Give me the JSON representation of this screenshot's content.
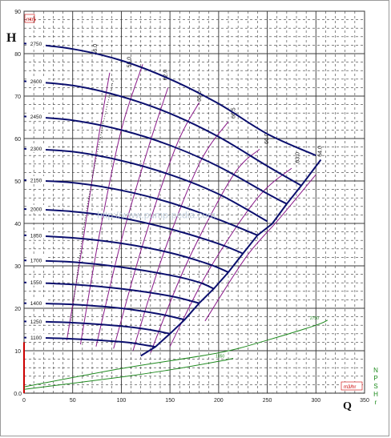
{
  "chart_data": {
    "type": "line",
    "ylabel": "H",
    "y_unit": "mtrs",
    "xlabel": "Q",
    "x_unit": "m3/hr",
    "right_label_chars": [
      "N",
      "P",
      "S",
      "H",
      "r"
    ],
    "x_axis": {
      "min": 0,
      "max": 350,
      "ticks": [
        0,
        50,
        100,
        150,
        200,
        250,
        300,
        350
      ]
    },
    "y_axis": {
      "min": 0,
      "max": 90,
      "ticks": [
        10,
        20,
        30,
        40,
        50,
        60,
        70,
        80,
        90
      ]
    },
    "y_zero_label": "0.0",
    "watermark": "http://www.pump-pedia.com",
    "colors": {
      "head": "#0b0f6e",
      "efficiency": "#8a1a8a",
      "npsh": "#1f8a1f",
      "grid": "#3a3a3a",
      "axis_red": "#cc0000"
    },
    "head_curves": [
      {
        "name": "2750",
        "points": [
          [
            0,
            82.4
          ],
          [
            50,
            81.1
          ],
          [
            100,
            78.4
          ],
          [
            150,
            74.0
          ],
          [
            200,
            68.2
          ],
          [
            250,
            61.1
          ],
          [
            300,
            56.0
          ]
        ]
      },
      {
        "name": "2600",
        "points": [
          [
            0,
            73.5
          ],
          [
            50,
            72.5
          ],
          [
            100,
            69.9
          ],
          [
            150,
            65.9
          ],
          [
            200,
            60.4
          ],
          [
            250,
            53.5
          ],
          [
            285,
            48.9
          ]
        ]
      },
      {
        "name": "2450",
        "points": [
          [
            0,
            65.2
          ],
          [
            50,
            64.3
          ],
          [
            100,
            62.0
          ],
          [
            150,
            58.4
          ],
          [
            200,
            53.4
          ],
          [
            250,
            47.0
          ],
          [
            270,
            44.6
          ]
        ]
      },
      {
        "name": "2300",
        "points": [
          [
            0,
            57.6
          ],
          [
            50,
            56.9
          ],
          [
            100,
            54.8
          ],
          [
            150,
            51.5
          ],
          [
            200,
            46.9
          ],
          [
            250,
            40.5
          ]
        ]
      },
      {
        "name": "2150",
        "points": [
          [
            0,
            50.2
          ],
          [
            50,
            49.6
          ],
          [
            100,
            47.8
          ],
          [
            150,
            44.9
          ],
          [
            200,
            40.9
          ],
          [
            240,
            37.2
          ]
        ]
      },
      {
        "name": "2000",
        "points": [
          [
            0,
            43.4
          ],
          [
            50,
            42.8
          ],
          [
            100,
            41.3
          ],
          [
            150,
            38.7
          ],
          [
            200,
            35.2
          ],
          [
            225,
            32.9
          ]
        ]
      },
      {
        "name": "1850",
        "points": [
          [
            0,
            37.2
          ],
          [
            50,
            36.6
          ],
          [
            100,
            35.3
          ],
          [
            150,
            33.1
          ],
          [
            190,
            30.4
          ],
          [
            210,
            28.5
          ]
        ]
      },
      {
        "name": "1700",
        "points": [
          [
            0,
            31.3
          ],
          [
            50,
            30.9
          ],
          [
            100,
            29.7
          ],
          [
            150,
            27.8
          ],
          [
            180,
            26.1
          ],
          [
            195,
            24.6
          ]
        ]
      },
      {
        "name": "1550",
        "points": [
          [
            0,
            26.1
          ],
          [
            50,
            25.6
          ],
          [
            100,
            24.6
          ],
          [
            150,
            22.9
          ],
          [
            180,
            21.2
          ]
        ]
      },
      {
        "name": "1400",
        "points": [
          [
            0,
            21.2
          ],
          [
            50,
            20.9
          ],
          [
            100,
            20.0
          ],
          [
            140,
            18.6
          ],
          [
            165,
            17.3
          ]
        ]
      },
      {
        "name": "1250",
        "points": [
          [
            0,
            16.9
          ],
          [
            50,
            16.6
          ],
          [
            100,
            15.8
          ],
          [
            130,
            14.9
          ],
          [
            150,
            14.0
          ]
        ]
      },
      {
        "name": "1100",
        "points": [
          [
            0,
            13.1
          ],
          [
            50,
            12.8
          ],
          [
            100,
            12.1
          ],
          [
            120,
            11.5
          ],
          [
            135,
            10.9
          ]
        ]
      }
    ],
    "end_of_curve": [
      [
        120,
        8.8
      ],
      [
        135,
        10.9
      ],
      [
        150,
        14.0
      ],
      [
        165,
        17.3
      ],
      [
        180,
        21.2
      ],
      [
        195,
        24.6
      ],
      [
        210,
        28.5
      ],
      [
        225,
        32.9
      ],
      [
        240,
        37.2
      ],
      [
        255,
        39.9
      ],
      [
        270,
        44.6
      ],
      [
        285,
        48.9
      ],
      [
        305,
        55.0
      ]
    ],
    "efficiency_curves": [
      {
        "name": "46.0",
        "points": [
          [
            44,
            12.5
          ],
          [
            60,
            35
          ],
          [
            75,
            58
          ],
          [
            88,
            75.5
          ]
        ]
      },
      {
        "name": "55.0",
        "points": [
          [
            58,
            11.5
          ],
          [
            78,
            38
          ],
          [
            100,
            62
          ],
          [
            122,
            77.5
          ]
        ]
      },
      {
        "name": "62.0",
        "points": [
          [
            74,
            11.0
          ],
          [
            100,
            36
          ],
          [
            128,
            58
          ],
          [
            148,
            72.0
          ]
        ]
      },
      {
        "name": "65.0",
        "points": [
          [
            92,
            10.5
          ],
          [
            122,
            35
          ],
          [
            156,
            58
          ],
          [
            180,
            68.5
          ]
        ]
      },
      {
        "name": "66.5",
        "points": [
          [
            112,
            10.0
          ],
          [
            142,
            32
          ],
          [
            180,
            54
          ],
          [
            210,
            64.0
          ]
        ]
      },
      {
        "name": "66.0",
        "points": [
          [
            130,
            9.5
          ],
          [
            166,
            30
          ],
          [
            214,
            51
          ],
          [
            242,
            57.5
          ]
        ]
      },
      {
        "name": "63.0",
        "points": [
          [
            150,
            11.0
          ],
          [
            190,
            29
          ],
          [
            240,
            46
          ],
          [
            275,
            53.0
          ]
        ]
      },
      {
        "name": "64.0",
        "points": [
          [
            186,
            17.0
          ],
          [
            228,
            32
          ],
          [
            262,
            41
          ],
          [
            300,
            51.5
          ]
        ]
      }
    ],
    "efficiency_label_positions": [
      {
        "name": "46.0",
        "x": 75,
        "y": 81
      },
      {
        "name": "55.0",
        "x": 110,
        "y": 78
      },
      {
        "name": "62.0",
        "x": 147,
        "y": 75
      },
      {
        "name": "65.0",
        "x": 182,
        "y": 70
      },
      {
        "name": "66.5",
        "x": 217,
        "y": 66
      },
      {
        "name": "66.0",
        "x": 251,
        "y": 60
      },
      {
        "name": "63.0",
        "x": 283,
        "y": 55.5
      },
      {
        "name": "64.0",
        "x": 306,
        "y": 57
      }
    ],
    "npsh_curves": [
      {
        "name": "2750",
        "points": [
          [
            0,
            1.5
          ],
          [
            100,
            5.8
          ],
          [
            200,
            9.5
          ],
          [
            250,
            12.5
          ],
          [
            300,
            16.0
          ],
          [
            312,
            17.2
          ]
        ]
      },
      {
        "name": "1850",
        "points": [
          [
            0,
            0.9
          ],
          [
            100,
            3.8
          ],
          [
            150,
            5.5
          ],
          [
            200,
            7.5
          ],
          [
            215,
            8.2
          ]
        ]
      }
    ]
  }
}
